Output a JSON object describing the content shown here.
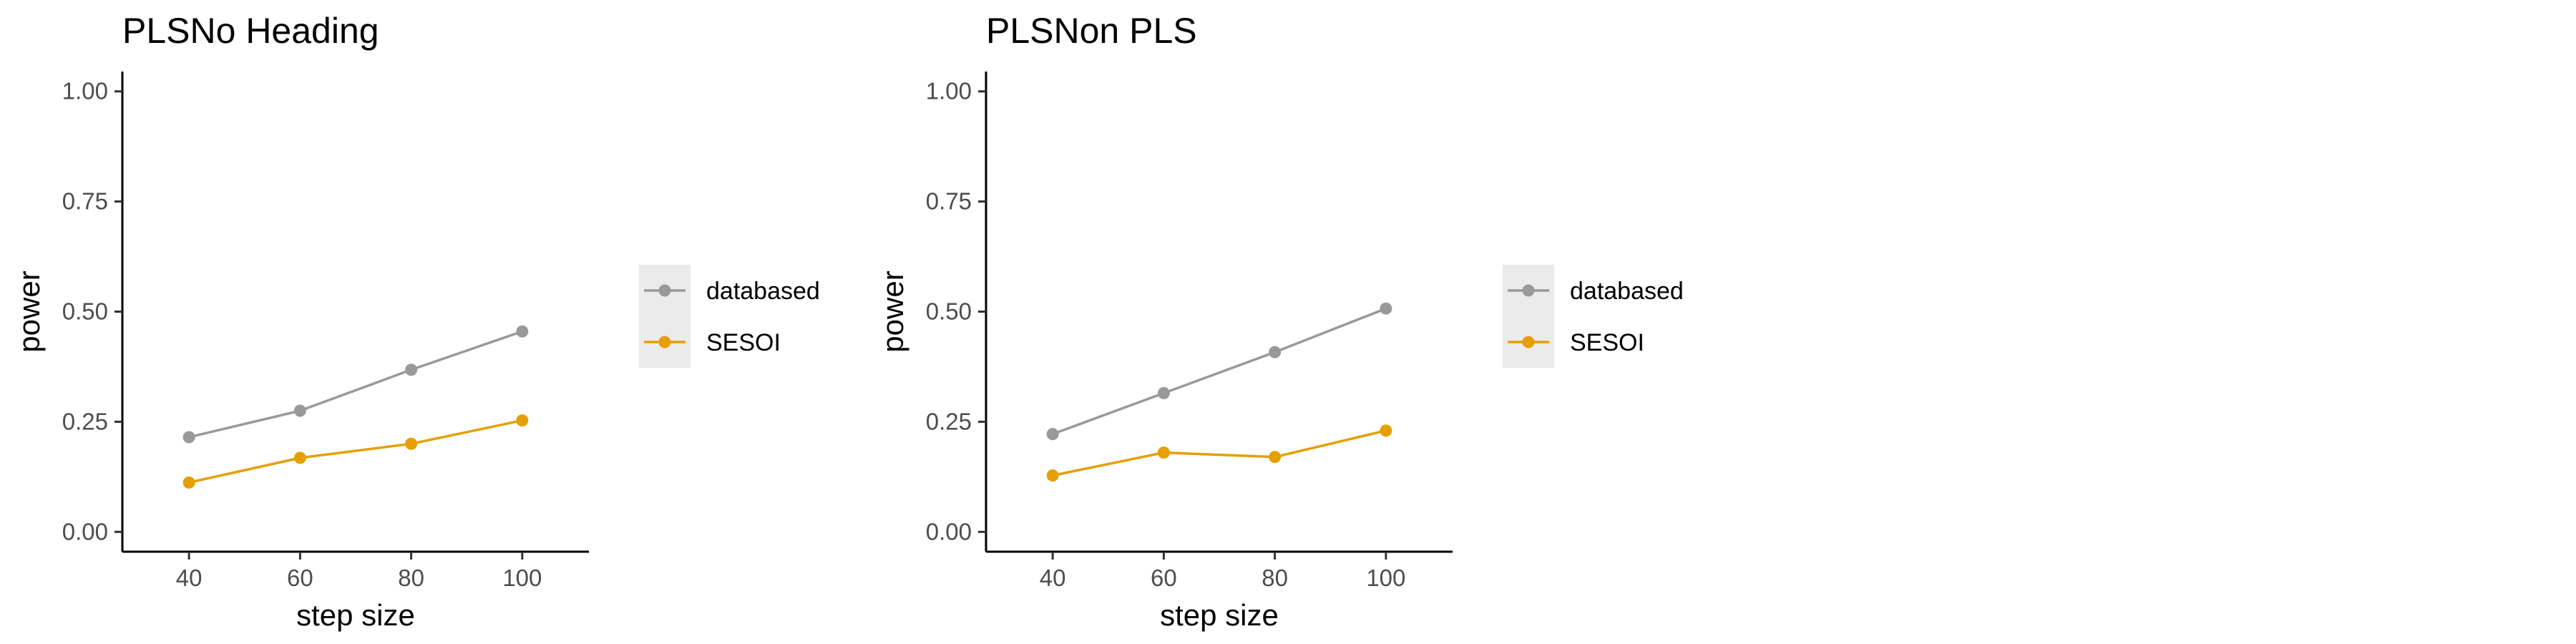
{
  "colors": {
    "databased": "#999999",
    "sesoi": "#E69F00",
    "axis": "#000000",
    "tick_text": "#4d4d4d",
    "legend_key_bg": "#ebebeb"
  },
  "chart_data": [
    {
      "type": "line",
      "title": "PLSNo Heading",
      "xlabel": "step size",
      "ylabel": "power",
      "x": [
        40,
        60,
        80,
        100
      ],
      "x_ticks": [
        "40",
        "60",
        "80",
        "100"
      ],
      "y_ticks": [
        "0.00",
        "0.25",
        "0.50",
        "0.75",
        "1.00"
      ],
      "xlim": [
        28,
        112
      ],
      "ylim": [
        -0.045,
        1.045
      ],
      "grid": false,
      "legend_position": "right",
      "series": [
        {
          "name": "databased",
          "color": "#999999",
          "values": [
            0.215,
            0.275,
            0.368,
            0.455
          ]
        },
        {
          "name": "SESOI",
          "color": "#E69F00",
          "values": [
            0.112,
            0.168,
            0.2,
            0.253
          ]
        }
      ]
    },
    {
      "type": "line",
      "title": "PLSNon PLS",
      "xlabel": "step size",
      "ylabel": "power",
      "x": [
        40,
        60,
        80,
        100
      ],
      "x_ticks": [
        "40",
        "60",
        "80",
        "100"
      ],
      "y_ticks": [
        "0.00",
        "0.25",
        "0.50",
        "0.75",
        "1.00"
      ],
      "xlim": [
        28,
        112
      ],
      "ylim": [
        -0.045,
        1.045
      ],
      "grid": false,
      "legend_position": "right",
      "series": [
        {
          "name": "databased",
          "color": "#999999",
          "values": [
            0.222,
            0.315,
            0.408,
            0.507
          ]
        },
        {
          "name": "SESOI",
          "color": "#E69F00",
          "values": [
            0.128,
            0.18,
            0.17,
            0.23
          ]
        }
      ]
    }
  ]
}
